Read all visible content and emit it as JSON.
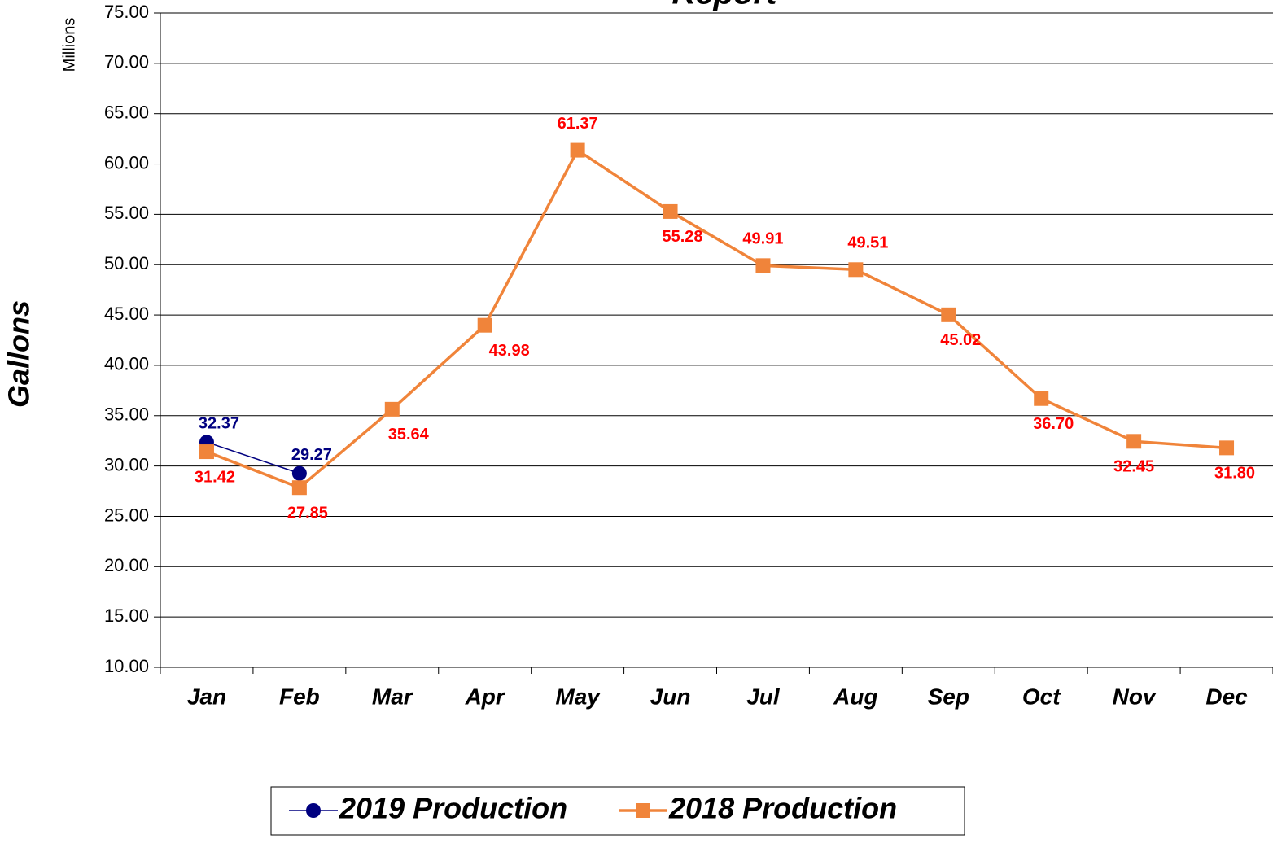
{
  "chart_data": {
    "type": "line",
    "title": "Report",
    "y_label": "Gallons",
    "y_units": "Millions",
    "categories": [
      "Jan",
      "Feb",
      "Mar",
      "Apr",
      "May",
      "Jun",
      "Jul",
      "Aug",
      "Sep",
      "Oct",
      "Nov",
      "Dec"
    ],
    "series": [
      {
        "name": "2019 Production",
        "color": "#000080",
        "marker": "circle",
        "values": [
          32.37,
          29.27,
          null,
          null,
          null,
          null,
          null,
          null,
          null,
          null,
          null,
          null
        ],
        "value_labels": [
          "32.37",
          "29.27",
          null,
          null,
          null,
          null,
          null,
          null,
          null,
          null,
          null,
          null
        ]
      },
      {
        "name": "2018 Production",
        "color": "#f0843a",
        "marker": "square",
        "values": [
          31.42,
          27.85,
          35.64,
          43.98,
          61.37,
          55.28,
          49.91,
          49.51,
          45.02,
          36.7,
          32.45,
          31.8
        ],
        "value_labels": [
          "31.42",
          "27.85",
          "35.64",
          "43.98",
          "61.37",
          "55.28",
          "49.91",
          "49.51",
          "45.02",
          "36.70",
          "32.45",
          "31.80"
        ]
      }
    ],
    "ylim": [
      10,
      75
    ],
    "yticks": [
      {
        "value": 10,
        "label": "10.00"
      },
      {
        "value": 15,
        "label": "15.00"
      },
      {
        "value": 20,
        "label": "20.00"
      },
      {
        "value": 25,
        "label": "25.00"
      },
      {
        "value": 30,
        "label": "30.00"
      },
      {
        "value": 35,
        "label": "35.00"
      },
      {
        "value": 40,
        "label": "40.00"
      },
      {
        "value": 45,
        "label": "45.00"
      },
      {
        "value": 50,
        "label": "50.00"
      },
      {
        "value": 55,
        "label": "55.00"
      },
      {
        "value": 60,
        "label": "60.00"
      },
      {
        "value": 65,
        "label": "65.00"
      },
      {
        "value": 70,
        "label": "70.00"
      },
      {
        "value": 75,
        "label": "75.00"
      }
    ],
    "grid": true,
    "legend": "bottom"
  }
}
